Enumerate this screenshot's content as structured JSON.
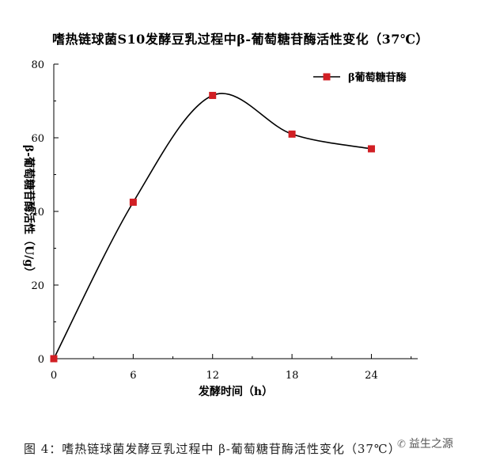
{
  "chart_data": {
    "type": "line",
    "title": "嗜热链球菌S10发酵豆乳过程中β-葡萄糖苷酶活性变化（37℃）",
    "xlabel": "发酵时间（h）",
    "ylabel": "β-葡萄糖苷酶活性（U/g）",
    "x": [
      0,
      6,
      12,
      18,
      24
    ],
    "series": [
      {
        "name": "β葡萄糖苷酶",
        "values": [
          0,
          42.5,
          71.5,
          61,
          57
        ]
      }
    ],
    "xlim": [
      0,
      27.5
    ],
    "ylim": [
      0,
      80
    ],
    "xticks": [
      0,
      6,
      12,
      18,
      24
    ],
    "yticks": [
      0,
      20,
      40,
      60,
      80
    ],
    "grid": false,
    "legend": "top-right",
    "colors": {
      "marker": "#d11f24",
      "line": "#000000"
    }
  },
  "caption": "图 4：嗜热链球菌发酵豆乳过程中 β-葡萄糖苷酶活性变化（37℃）",
  "watermark": "益生之源"
}
